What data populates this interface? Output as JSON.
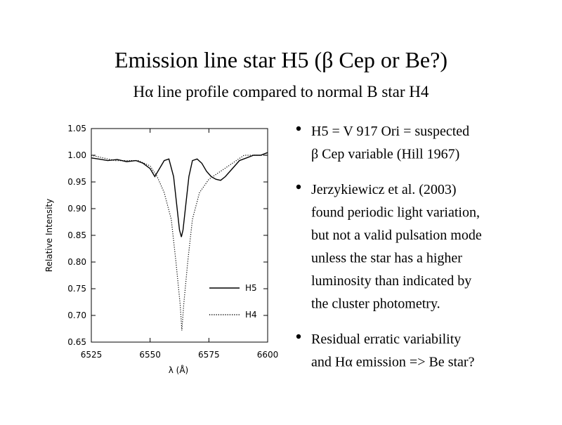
{
  "slide": {
    "title": "Emission line star H5 (β Cep or Be?)",
    "subtitle": "Hα line profile compared to normal B star H4",
    "bullets": [
      [
        "H5 = V 917 Ori = suspected",
        "β Cep variable (Hill 1967)"
      ],
      [
        "Jerzykiewicz et al. (2003)",
        "found periodic light variation,",
        "but not a valid pulsation mode",
        "unless the star has a higher",
        "luminosity than indicated by",
        "the cluster photometry."
      ],
      [
        "Residual erratic variability",
        "and Hα emission => Be star?"
      ]
    ]
  },
  "chart_data": {
    "type": "line",
    "x_label": "λ (Å)",
    "y_label": "Relative Intensity",
    "xlim": [
      6525,
      6600
    ],
    "xticks": [
      6525,
      6550,
      6575,
      6600
    ],
    "ylim": [
      0.65,
      1.05
    ],
    "yticks": [
      0.65,
      {
        "value": 0.7,
        "label": "0.70"
      },
      0.75,
      {
        "value": 0.8,
        "label": "0.80"
      },
      0.85,
      {
        "value": 0.9,
        "label": "0.90"
      },
      0.95,
      {
        "value": 1.0,
        "label": "1.00"
      },
      1.05
    ],
    "legend": "lower right",
    "series": [
      {
        "name": "H5",
        "color": "#000000",
        "dash": "solid",
        "x": [
          6525,
          6528,
          6532,
          6536,
          6540,
          6544,
          6547,
          6550,
          6552,
          6554,
          6556,
          6558,
          6560,
          6561.5,
          6562.5,
          6563.3,
          6564,
          6565,
          6566.5,
          6568,
          6570,
          6572,
          6574,
          6576,
          6578,
          6580,
          6582,
          6585,
          6588,
          6591,
          6594,
          6597,
          6600
        ],
        "values": [
          0.995,
          0.993,
          0.99,
          0.992,
          0.988,
          0.99,
          0.985,
          0.975,
          0.96,
          0.975,
          0.99,
          0.993,
          0.96,
          0.9,
          0.86,
          0.847,
          0.86,
          0.9,
          0.96,
          0.99,
          0.993,
          0.985,
          0.97,
          0.96,
          0.955,
          0.953,
          0.96,
          0.975,
          0.99,
          0.995,
          1.0,
          1.0,
          1.005
        ]
      },
      {
        "name": "H4",
        "color": "#000000",
        "dash": "dotted",
        "x": [
          6525,
          6530,
          6535,
          6540,
          6545,
          6550,
          6553,
          6556,
          6559,
          6561,
          6562.8,
          6563.5,
          6564.3,
          6566,
          6568,
          6571,
          6575,
          6580,
          6585,
          6590,
          6595,
          6600
        ],
        "values": [
          1.0,
          0.995,
          0.99,
          0.99,
          0.99,
          0.98,
          0.96,
          0.93,
          0.88,
          0.8,
          0.72,
          0.672,
          0.72,
          0.8,
          0.88,
          0.93,
          0.955,
          0.97,
          0.985,
          1.0,
          1.0,
          1.0
        ]
      }
    ]
  }
}
